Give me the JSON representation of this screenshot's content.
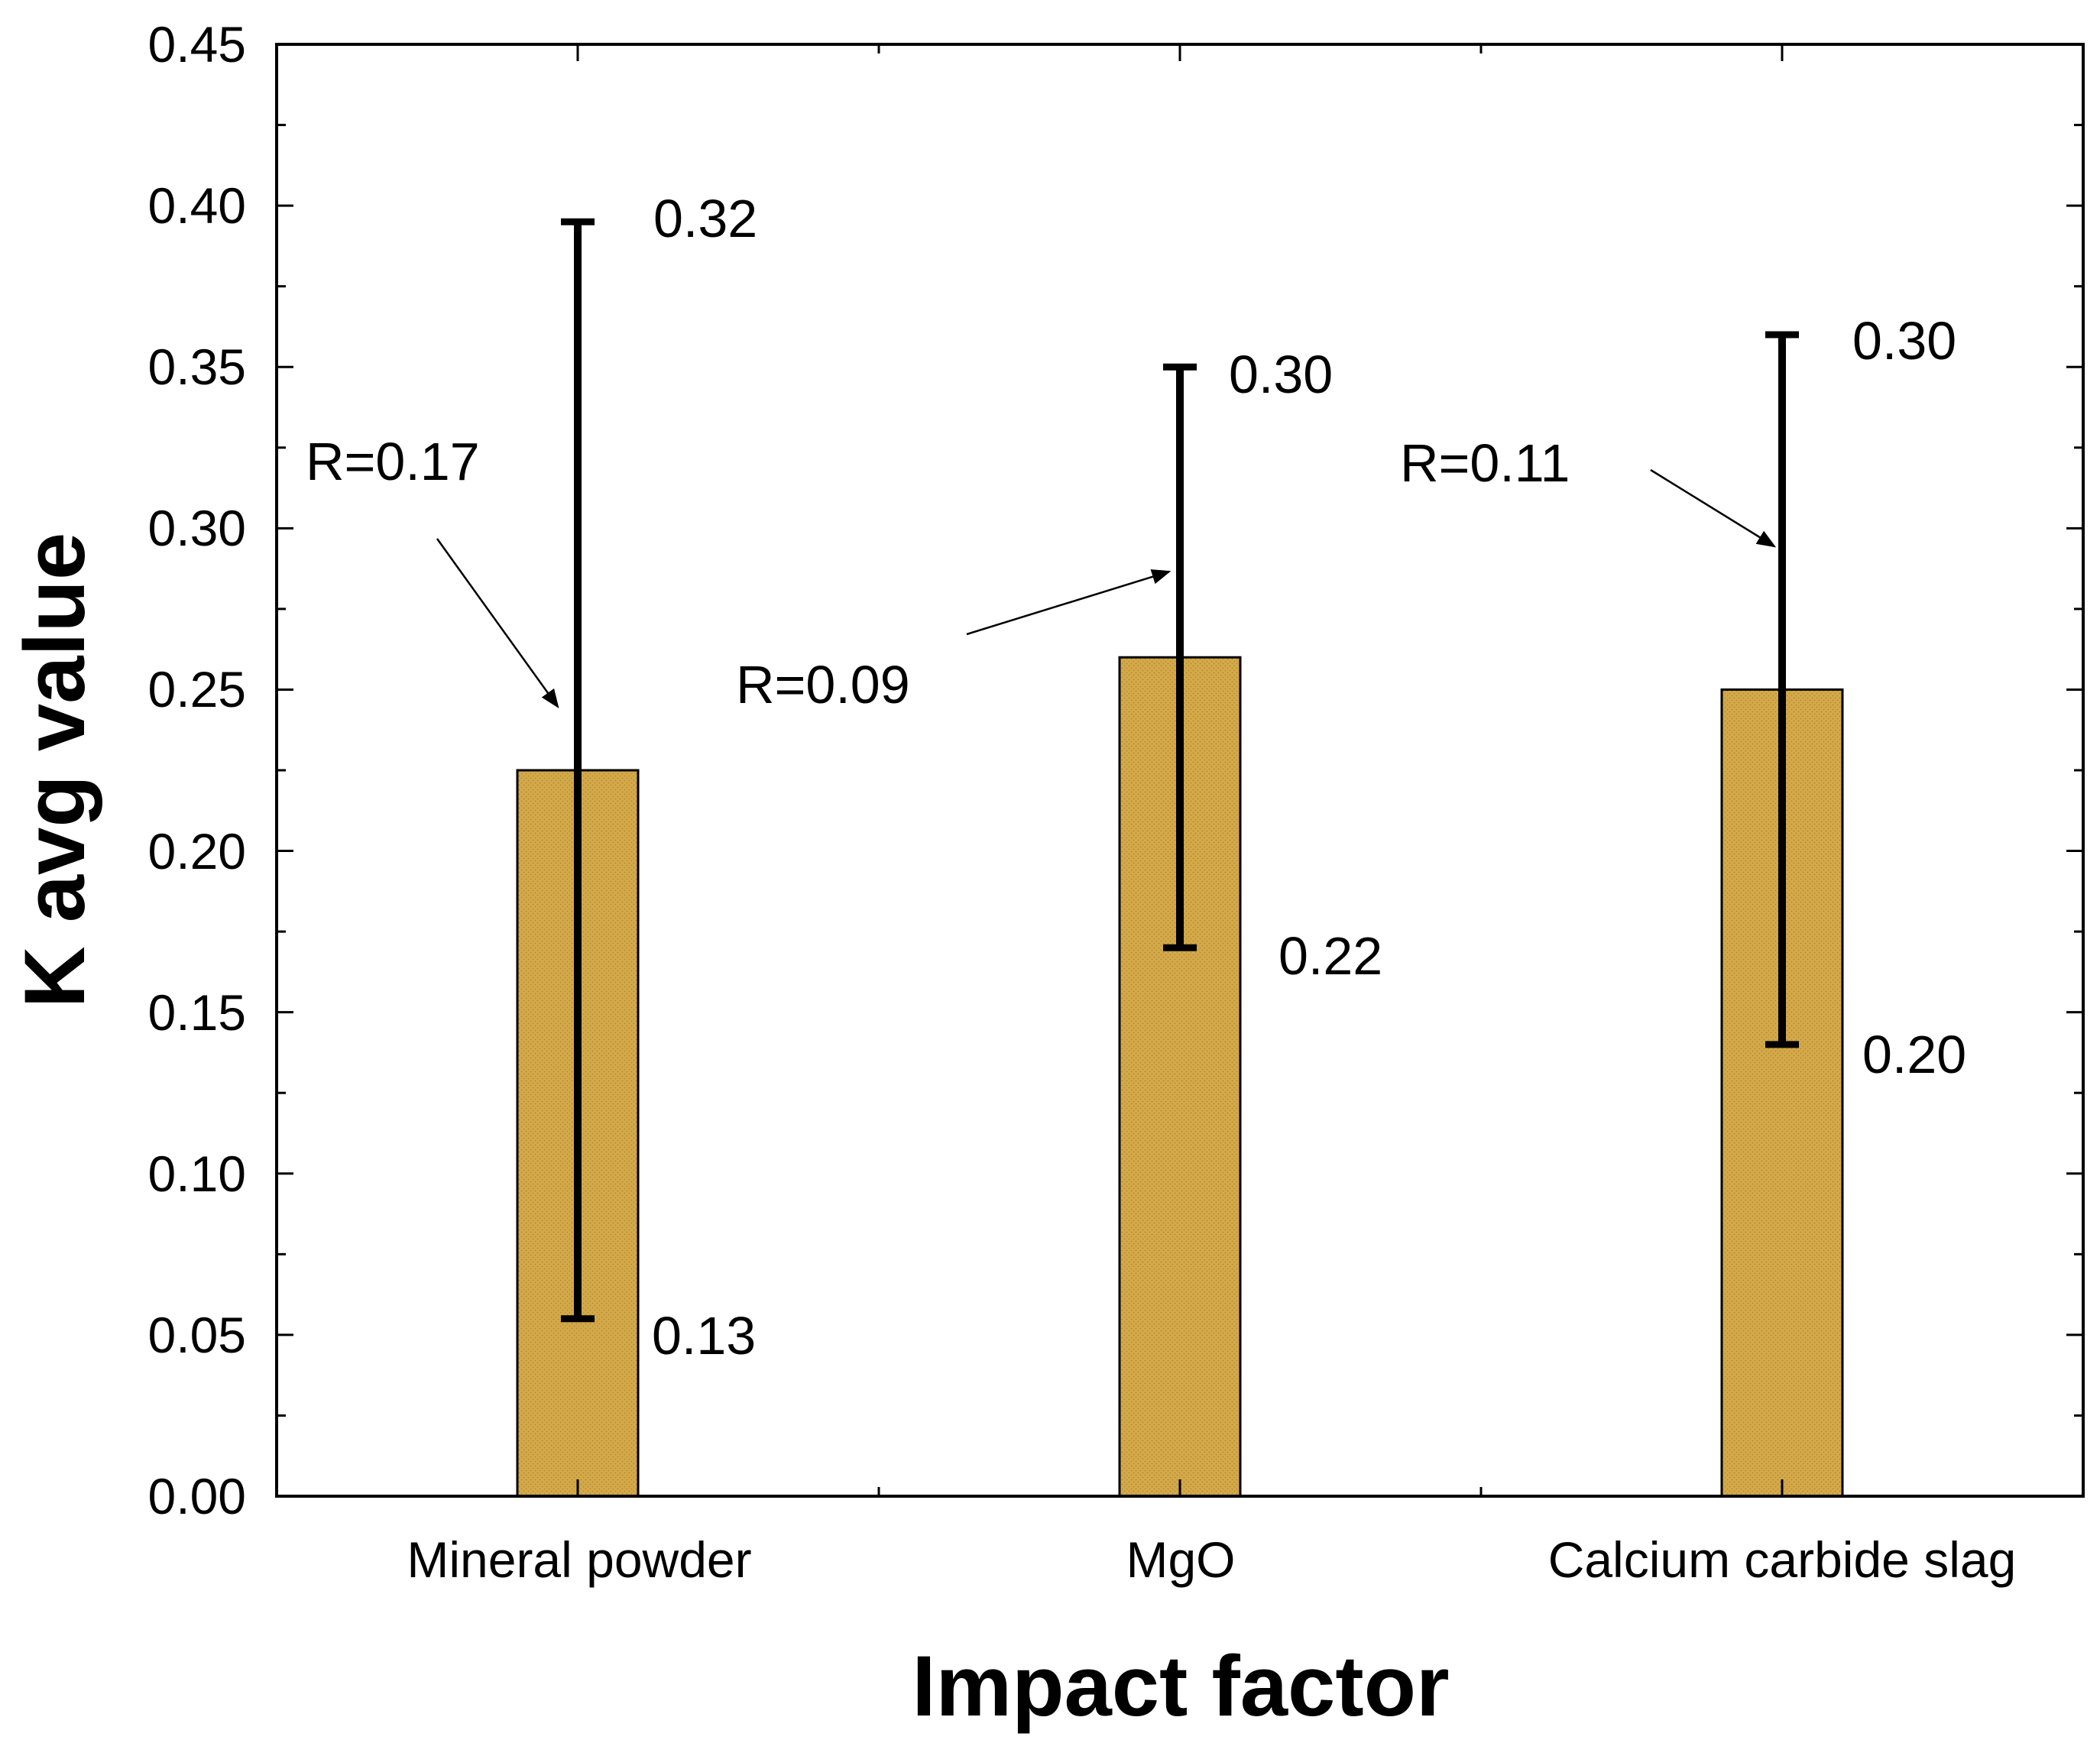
{
  "chart_data": {
    "type": "bar",
    "xlabel": "Impact factor",
    "ylabel": "K avg value",
    "ylim": [
      0,
      0.45
    ],
    "yticks": [
      "0.00",
      "0.05",
      "0.10",
      "0.15",
      "0.20",
      "0.25",
      "0.30",
      "0.35",
      "0.40",
      "0.45"
    ],
    "categories": [
      "Mineral powder",
      "MgO",
      "Calcium carbide slag"
    ],
    "values": [
      0.225,
      0.26,
      0.25
    ],
    "error_ranges": [
      {
        "low": 0.055,
        "high": 0.395
      },
      {
        "low": 0.17,
        "high": 0.35
      },
      {
        "low": 0.14,
        "high": 0.36
      }
    ],
    "bar_color": "#d4a94a",
    "annotations": {
      "high_labels": [
        "0.32",
        "0.30",
        "0.30"
      ],
      "low_labels": [
        "0.13",
        "0.22",
        "0.20"
      ],
      "range_labels": [
        "R=0.17",
        "R=0.09",
        "R=0.11"
      ]
    }
  }
}
